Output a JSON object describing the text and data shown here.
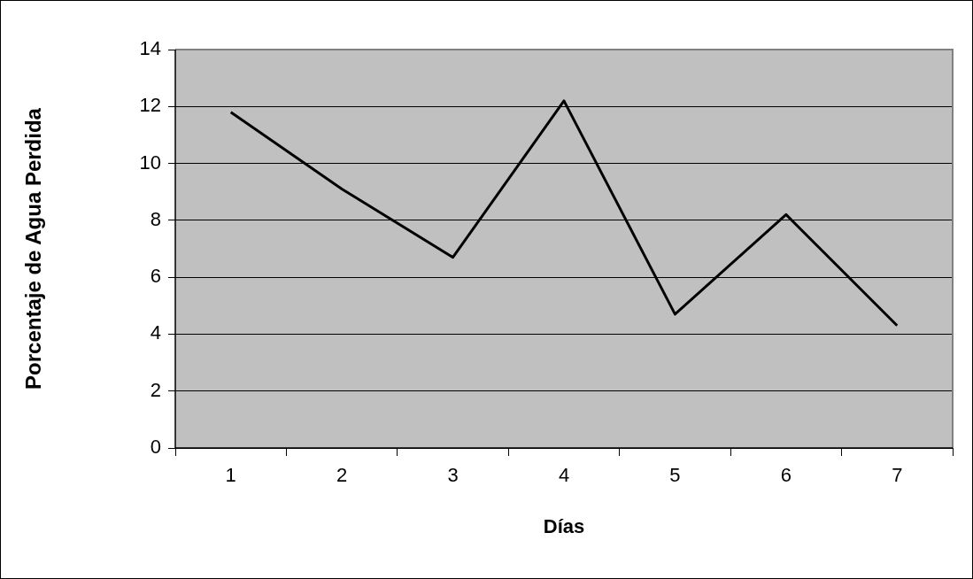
{
  "chart_data": {
    "type": "line",
    "xlabel": "Días",
    "ylabel": "Porcentaje de Agua Perdida",
    "categories": [
      "1",
      "2",
      "3",
      "4",
      "5",
      "6",
      "7"
    ],
    "series": [
      {
        "color": "#000000",
        "values": [
          11.8,
          9.1,
          6.7,
          12.2,
          4.7,
          8.2,
          4.3
        ]
      }
    ],
    "ylim": [
      0,
      14
    ],
    "yticks": [
      0,
      2,
      4,
      6,
      8,
      10,
      12,
      14
    ],
    "grid": "y",
    "legend": false,
    "marker": "none"
  }
}
